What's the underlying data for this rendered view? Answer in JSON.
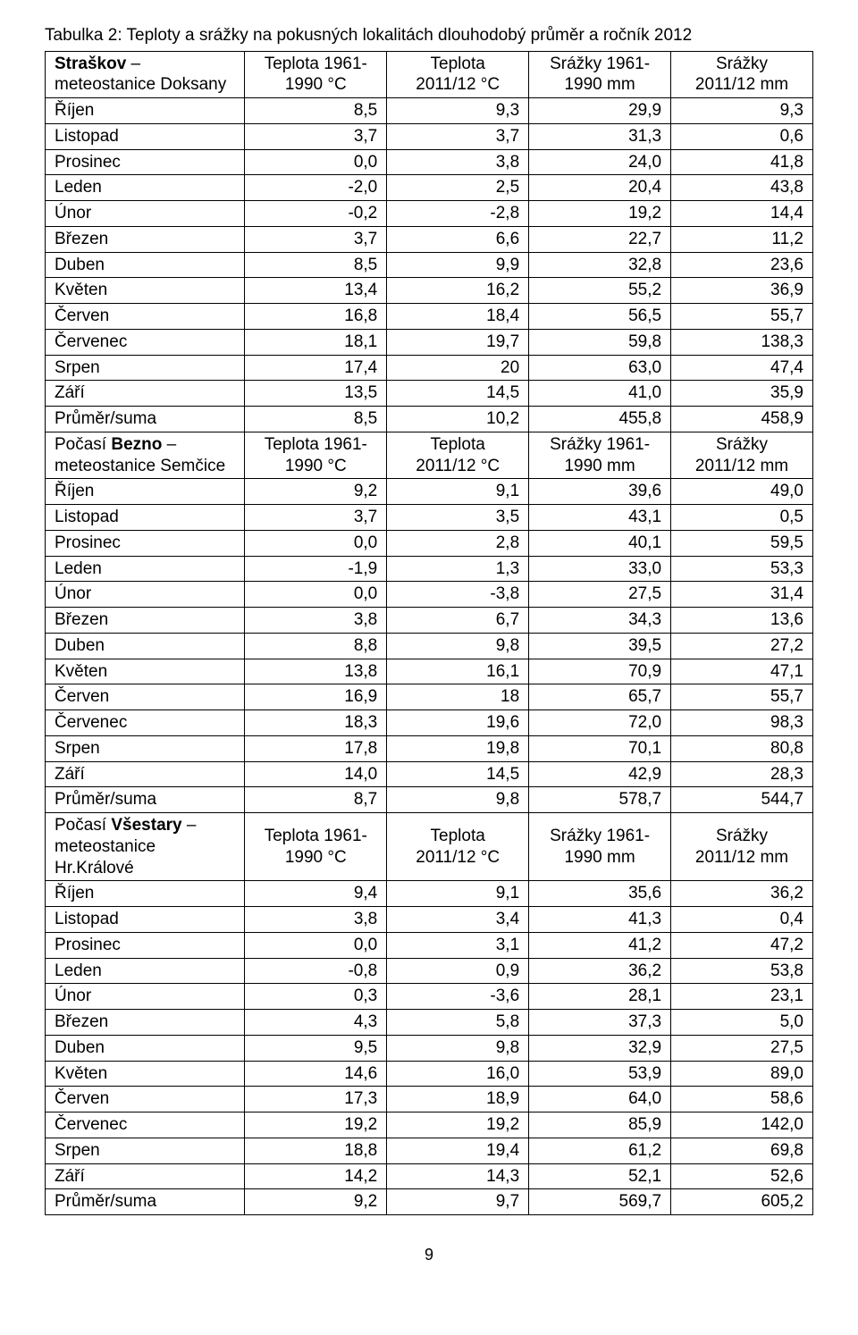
{
  "title": "Tabulka 2: Teploty a srážky na pokusných lokalitách dlouhodobý průměr a ročník 2012",
  "page_number": "9",
  "colors": {
    "text": "#000000",
    "background": "#ffffff",
    "border": "#000000"
  },
  "typography": {
    "font_family": "Arial, Helvetica, sans-serif",
    "base_fontsize_pt": 14,
    "title_fontsize_pt": 14
  },
  "layout": {
    "col_widths_pct": [
      26,
      18.5,
      18.5,
      18.5,
      18.5
    ],
    "label_align": "left",
    "value_align": "right",
    "header_align": "center"
  },
  "sections": [
    {
      "header": {
        "prefix_bold": "Straškov",
        "station_label": " – meteostanice Doksany",
        "col2_line1": "Teplota 1961-",
        "col2_line2": "1990 °C",
        "col3_line1": "Teplota",
        "col3_line2": "2011/12 °C",
        "col4_line1": "Srážky 1961-",
        "col4_line2": "1990 mm",
        "col5_line1": "Srážky",
        "col5_line2": "2011/12 mm"
      },
      "rows": [
        {
          "label": "Říjen",
          "v1": "8,5",
          "v2": "9,3",
          "v3": "29,9",
          "v4": "9,3"
        },
        {
          "label": "Listopad",
          "v1": "3,7",
          "v2": "3,7",
          "v3": "31,3",
          "v4": "0,6"
        },
        {
          "label": "Prosinec",
          "v1": "0,0",
          "v2": "3,8",
          "v3": "24,0",
          "v4": "41,8"
        },
        {
          "label": "Leden",
          "v1": "-2,0",
          "v2": "2,5",
          "v3": "20,4",
          "v4": "43,8"
        },
        {
          "label": "Únor",
          "v1": "-0,2",
          "v2": "-2,8",
          "v3": "19,2",
          "v4": "14,4"
        },
        {
          "label": "Březen",
          "v1": "3,7",
          "v2": "6,6",
          "v3": "22,7",
          "v4": "11,2"
        },
        {
          "label": "Duben",
          "v1": "8,5",
          "v2": "9,9",
          "v3": "32,8",
          "v4": "23,6"
        },
        {
          "label": "Květen",
          "v1": "13,4",
          "v2": "16,2",
          "v3": "55,2",
          "v4": "36,9"
        },
        {
          "label": "Červen",
          "v1": "16,8",
          "v2": "18,4",
          "v3": "56,5",
          "v4": "55,7"
        },
        {
          "label": "Červenec",
          "v1": "18,1",
          "v2": "19,7",
          "v3": "59,8",
          "v4": "138,3"
        },
        {
          "label": "Srpen",
          "v1": "17,4",
          "v2": "20",
          "v3": "63,0",
          "v4": "47,4"
        },
        {
          "label": "Září",
          "v1": "13,5",
          "v2": "14,5",
          "v3": "41,0",
          "v4": "35,9"
        }
      ],
      "summary": {
        "label": "Průměr/suma",
        "v1": "8,5",
        "v2": "10,2",
        "v3": "455,8",
        "v4": "458,9"
      }
    },
    {
      "header": {
        "prefix_plain": "Počasí ",
        "prefix_bold": "Bezno",
        "station_label": " – meteostanice Semčice",
        "col2_line1": "Teplota 1961-",
        "col2_line2": "1990 °C",
        "col3_line1": "Teplota",
        "col3_line2": "2011/12 °C",
        "col4_line1": "Srážky 1961-",
        "col4_line2": "1990 mm",
        "col5_line1": "Srážky",
        "col5_line2": "2011/12 mm"
      },
      "rows": [
        {
          "label": "Říjen",
          "v1": "9,2",
          "v2": "9,1",
          "v3": "39,6",
          "v4": "49,0"
        },
        {
          "label": "Listopad",
          "v1": "3,7",
          "v2": "3,5",
          "v3": "43,1",
          "v4": "0,5"
        },
        {
          "label": "Prosinec",
          "v1": "0,0",
          "v2": "2,8",
          "v3": "40,1",
          "v4": "59,5"
        },
        {
          "label": "Leden",
          "v1": "-1,9",
          "v2": "1,3",
          "v3": "33,0",
          "v4": "53,3"
        },
        {
          "label": "Únor",
          "v1": "0,0",
          "v2": "-3,8",
          "v3": "27,5",
          "v4": "31,4"
        },
        {
          "label": "Březen",
          "v1": "3,8",
          "v2": "6,7",
          "v3": "34,3",
          "v4": "13,6"
        },
        {
          "label": "Duben",
          "v1": "8,8",
          "v2": "9,8",
          "v3": "39,5",
          "v4": "27,2"
        },
        {
          "label": "Květen",
          "v1": "13,8",
          "v2": "16,1",
          "v3": "70,9",
          "v4": "47,1"
        },
        {
          "label": "Červen",
          "v1": "16,9",
          "v2": "18",
          "v3": "65,7",
          "v4": "55,7"
        },
        {
          "label": "Červenec",
          "v1": "18,3",
          "v2": "19,6",
          "v3": "72,0",
          "v4": "98,3"
        },
        {
          "label": "Srpen",
          "v1": "17,8",
          "v2": "19,8",
          "v3": "70,1",
          "v4": "80,8"
        },
        {
          "label": "Září",
          "v1": "14,0",
          "v2": "14,5",
          "v3": "42,9",
          "v4": "28,3"
        }
      ],
      "summary": {
        "label": "Průměr/suma",
        "v1": "8,7",
        "v2": "9,8",
        "v3": "578,7",
        "v4": "544,7"
      }
    },
    {
      "header": {
        "prefix_plain": "Počasí ",
        "prefix_bold": "Všestary",
        "station_label": " – meteostanice Hr.Králové",
        "col2_line1": "Teplota 1961-",
        "col2_line2": "1990 °C",
        "col3_line1": "Teplota",
        "col3_line2": "2011/12 °C",
        "col4_line1": "Srážky 1961-",
        "col4_line2": "1990 mm",
        "col5_line1": "Srážky",
        "col5_line2": "2011/12 mm"
      },
      "rows": [
        {
          "label": "Říjen",
          "v1": "9,4",
          "v2": "9,1",
          "v3": "35,6",
          "v4": "36,2"
        },
        {
          "label": "Listopad",
          "v1": "3,8",
          "v2": "3,4",
          "v3": "41,3",
          "v4": "0,4"
        },
        {
          "label": "Prosinec",
          "v1": "0,0",
          "v2": "3,1",
          "v3": "41,2",
          "v4": "47,2"
        },
        {
          "label": "Leden",
          "v1": "-0,8",
          "v2": "0,9",
          "v3": "36,2",
          "v4": "53,8"
        },
        {
          "label": "Únor",
          "v1": "0,3",
          "v2": "-3,6",
          "v3": "28,1",
          "v4": "23,1"
        },
        {
          "label": "Březen",
          "v1": "4,3",
          "v2": "5,8",
          "v3": "37,3",
          "v4": "5,0"
        },
        {
          "label": "Duben",
          "v1": "9,5",
          "v2": "9,8",
          "v3": "32,9",
          "v4": "27,5"
        },
        {
          "label": "Květen",
          "v1": "14,6",
          "v2": "16,0",
          "v3": "53,9",
          "v4": "89,0"
        },
        {
          "label": "Červen",
          "v1": "17,3",
          "v2": "18,9",
          "v3": "64,0",
          "v4": "58,6"
        },
        {
          "label": "Červenec",
          "v1": "19,2",
          "v2": "19,2",
          "v3": "85,9",
          "v4": "142,0"
        },
        {
          "label": "Srpen",
          "v1": "18,8",
          "v2": "19,4",
          "v3": "61,2",
          "v4": "69,8"
        },
        {
          "label": "Září",
          "v1": "14,2",
          "v2": "14,3",
          "v3": "52,1",
          "v4": "52,6"
        }
      ],
      "summary": {
        "label": "Průměr/suma",
        "v1": "9,2",
        "v2": "9,7",
        "v3": "569,7",
        "v4": "605,2"
      }
    }
  ]
}
